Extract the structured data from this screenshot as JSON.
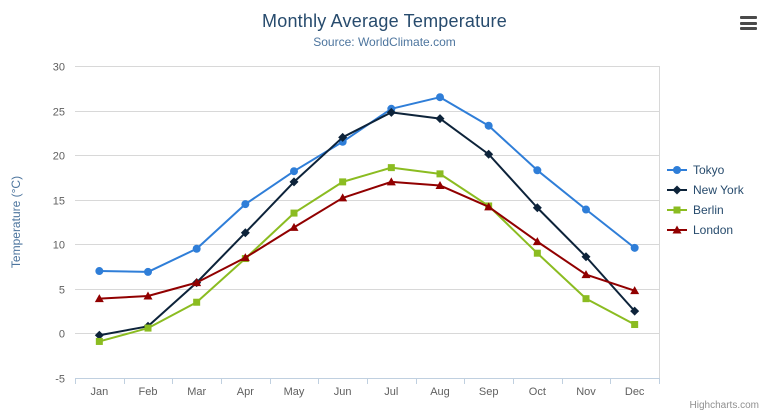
{
  "chart_data": {
    "type": "line",
    "title": "Monthly Average Temperature",
    "subtitle": "Source: WorldClimate.com",
    "xlabel": "",
    "ylabel": "Temperature (°C)",
    "categories": [
      "Jan",
      "Feb",
      "Mar",
      "Apr",
      "May",
      "Jun",
      "Jul",
      "Aug",
      "Sep",
      "Oct",
      "Nov",
      "Dec"
    ],
    "ylim": [
      -5,
      30
    ],
    "ytick_step": 5,
    "grid": true,
    "legend_position": "right",
    "series": [
      {
        "name": "Tokyo",
        "color": "#2f7ed8",
        "marker": "circle",
        "values": [
          7.0,
          6.9,
          9.5,
          14.5,
          18.2,
          21.5,
          25.2,
          26.5,
          23.3,
          18.3,
          13.9,
          9.6
        ]
      },
      {
        "name": "New York",
        "color": "#0d233a",
        "marker": "diamond",
        "values": [
          -0.2,
          0.8,
          5.7,
          11.3,
          17.0,
          22.0,
          24.8,
          24.1,
          20.1,
          14.1,
          8.6,
          2.5
        ]
      },
      {
        "name": "Berlin",
        "color": "#8bbc21",
        "marker": "square",
        "values": [
          -0.9,
          0.6,
          3.5,
          8.4,
          13.5,
          17.0,
          18.6,
          17.9,
          14.3,
          9.0,
          3.9,
          1.0
        ]
      },
      {
        "name": "London",
        "color": "#910000",
        "marker": "triangle",
        "values": [
          3.9,
          4.2,
          5.7,
          8.5,
          11.9,
          15.2,
          17.0,
          16.6,
          14.2,
          10.3,
          6.6,
          4.8
        ]
      }
    ]
  },
  "credits": "Highcharts.com",
  "icons": {
    "export_menu": "hamburger-menu-icon"
  },
  "colors": {
    "title": "#274b6d",
    "subtitle": "#4d759e",
    "axis_label": "#606060",
    "gridline": "#d8d8d8",
    "axis_line": "#c0d0e0"
  }
}
